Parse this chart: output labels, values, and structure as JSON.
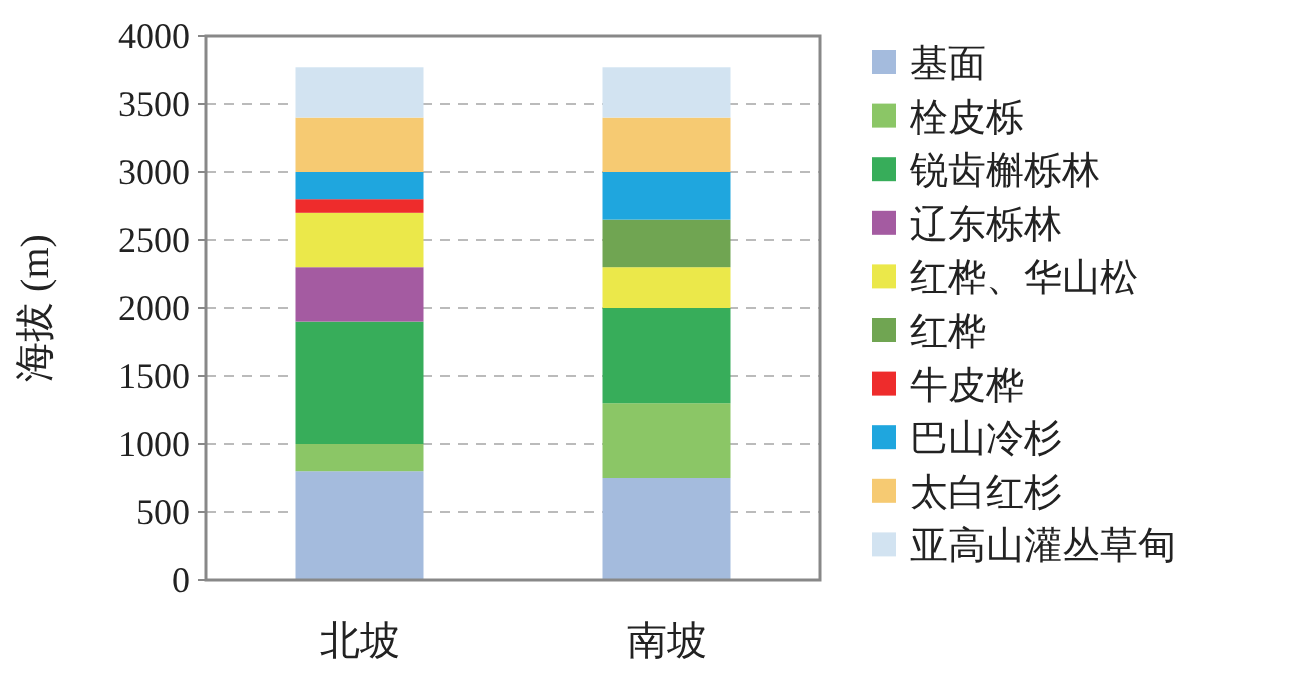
{
  "chart_data": {
    "type": "bar",
    "stacked": true,
    "ylabel": "海拔 (m)",
    "categories": [
      "北坡",
      "南坡"
    ],
    "ylim": [
      0,
      4000
    ],
    "yticks": [
      0,
      500,
      1000,
      1500,
      2000,
      2500,
      3000,
      3500,
      4000
    ],
    "grid": "y",
    "legend": "right",
    "series": [
      {
        "name": "基面",
        "color": "#a4bbdd",
        "values": [
          800,
          750
        ]
      },
      {
        "name": "栓皮栎",
        "color": "#8bc666",
        "values": [
          200,
          550
        ]
      },
      {
        "name": "锐齿槲栎林",
        "color": "#37ad5a",
        "values": [
          900,
          700
        ]
      },
      {
        "name": "辽东栎林",
        "color": "#a45ba1",
        "values": [
          400,
          null
        ]
      },
      {
        "name": "红桦、华山松",
        "color": "#ebe84a",
        "values": [
          400,
          300
        ]
      },
      {
        "name": "红桦",
        "color": "#70a552",
        "values": [
          null,
          350
        ]
      },
      {
        "name": "牛皮桦",
        "color": "#ee2c2c",
        "values": [
          100,
          null
        ]
      },
      {
        "name": "巴山冷杉",
        "color": "#1fa6de",
        "values": [
          200,
          350
        ]
      },
      {
        "name": "太白红杉",
        "color": "#f6ca72",
        "values": [
          400,
          400
        ]
      },
      {
        "name": "亚高山灌丛草甸",
        "color": "#d2e3f1",
        "values": [
          370,
          370
        ]
      }
    ]
  }
}
